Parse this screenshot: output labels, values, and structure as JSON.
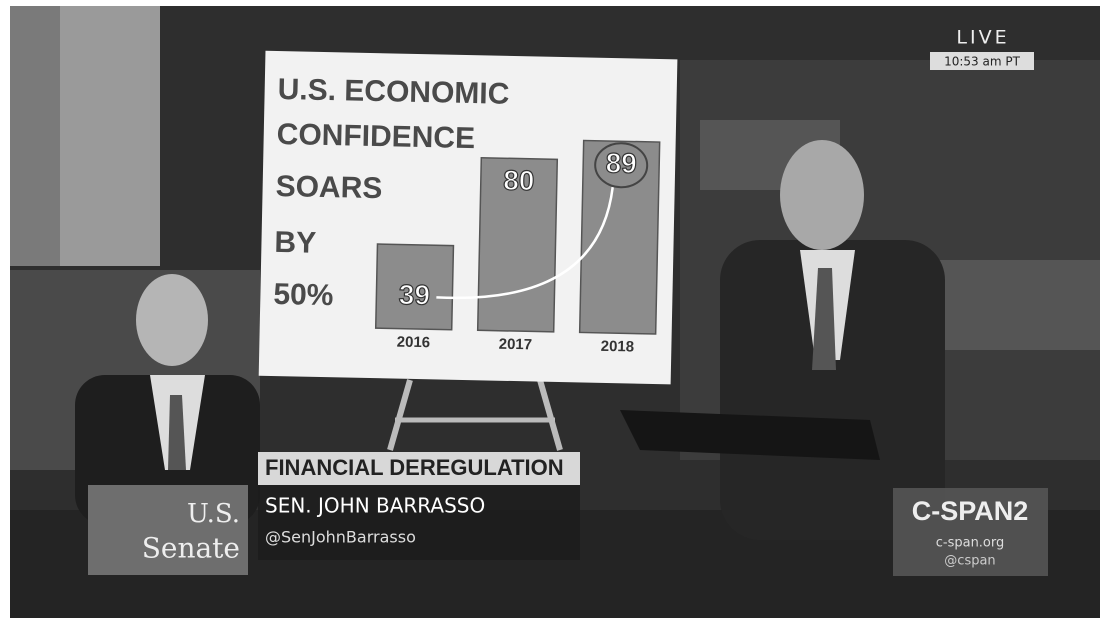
{
  "broadcast": {
    "live": "LIVE",
    "time": "10:53 am PT",
    "topic": "FINANCIAL DEREGULATION",
    "speaker": "SEN. JOHN BARRASSO",
    "handle": "@SenJohnBarrasso",
    "chamber_logo": [
      "U.S.",
      "Senate"
    ],
    "network": "C-SPAN2",
    "website": "c-span.org",
    "network_handle": "@cspan"
  },
  "chart_data": {
    "type": "bar",
    "title": [
      "U.S. ECONOMIC",
      "CONFIDENCE",
      "SOARS",
      "BY",
      "50%"
    ],
    "categories": [
      "2016",
      "2017",
      "2018"
    ],
    "values": [
      39,
      80,
      89
    ],
    "color": "#8c8c8c"
  }
}
